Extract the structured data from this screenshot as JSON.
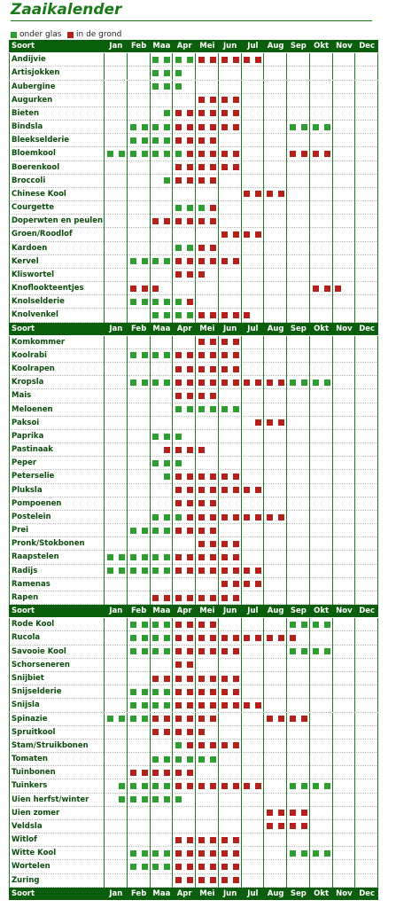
{
  "title": "Zaaikalender",
  "legend": {
    "glass": "onder glas",
    "ground": "in de grond"
  },
  "header": [
    "Soort",
    "Jan",
    "Feb",
    "Maa",
    "Apr",
    "Mei",
    "Jun",
    "Jul",
    "Aug",
    "Sep",
    "Okt",
    "Nov",
    "Dec"
  ],
  "sections": [
    {
      "rows": [
        {
          "name": "Andijvie",
          "slots": "....ggggrrrrrr.........."
        },
        {
          "name": "Artisjokken",
          "slots": "....ggg................."
        },
        {
          "name": "Aubergine",
          "slots": "....ggg................."
        },
        {
          "name": "Augurken",
          "slots": "........rrrr............"
        },
        {
          "name": "Bieten",
          "slots": ".....grrrrrr............"
        },
        {
          "name": "Bindsla",
          "slots": "..ggggrrrrrr....gggg...."
        },
        {
          "name": "Bleekselderie",
          "slots": "..ggggrrrr.............."
        },
        {
          "name": "Bloemkool",
          "slots": "gggggggrrrrr....rrrr...."
        },
        {
          "name": "Boerenkool",
          "slots": "......rrrrrr............"
        },
        {
          "name": "Broccoli",
          "slots": ".....grrrr.............."
        },
        {
          "name": "Chinese Kool",
          "slots": "............rrrr........"
        },
        {
          "name": "Courgette",
          "slots": "......gggr.............."
        },
        {
          "name": "Doperwten en peulen",
          "slots": "....rrrrrr.............."
        },
        {
          "name": "Groen/Roodlof",
          "slots": "..........rrrr.........."
        },
        {
          "name": "Kardoen",
          "slots": "......ggrr.............."
        },
        {
          "name": "Kervel",
          "slots": "..ggggrrrrrr............"
        },
        {
          "name": "Kliswortel",
          "slots": "......rrr..............."
        },
        {
          "name": "Knoflookteentjes",
          "slots": "..rrr.............rrr..."
        },
        {
          "name": "Knolselderie",
          "slots": "..gggggr................"
        },
        {
          "name": "Knolvenkel",
          "slots": "....ggggrrrrr..........."
        }
      ]
    },
    {
      "rows": [
        {
          "name": "Komkommer",
          "slots": "........rrrr............"
        },
        {
          "name": "Koolrabi",
          "slots": "..ggggrrrrrr............"
        },
        {
          "name": "Koolrapen",
          "slots": "......rrrrrr............"
        },
        {
          "name": "Kropsla",
          "slots": "..ggggrrrrrrrrrrgggg...."
        },
        {
          "name": "Mais",
          "slots": "......rrrr.............."
        },
        {
          "name": "Meloenen",
          "slots": "......gggggg............"
        },
        {
          "name": "Paksoi",
          "slots": ".............rrr........"
        },
        {
          "name": "Paprika",
          "slots": "....ggg................."
        },
        {
          "name": "Pastinaak",
          "slots": ".....rrrr..............."
        },
        {
          "name": "Peper",
          "slots": "....ggg................."
        },
        {
          "name": "Peterselie",
          "slots": ".....grrrrrr............"
        },
        {
          "name": "Pluksla",
          "slots": "......rrrrrrrr.........."
        },
        {
          "name": "Pompoenen",
          "slots": "......rrrr.............."
        },
        {
          "name": "Postelein",
          "slots": "....gggrrrrrrrrr........"
        },
        {
          "name": "Prei",
          "slots": "..ggggrrrr.............."
        },
        {
          "name": "Pronk/Stokbonen",
          "slots": "........rrrr............"
        },
        {
          "name": "Raapstelen",
          "slots": "ggggggrrrrrr............"
        },
        {
          "name": "Radijs",
          "slots": "ggggggrrrrrrrr.........."
        },
        {
          "name": "Ramenas",
          "slots": "..........rrrr.........."
        },
        {
          "name": "Rapen",
          "slots": "....rrrrrrrr............"
        }
      ]
    },
    {
      "rows": [
        {
          "name": "Rode Kool",
          "slots": "..ggggrrrr......gggg...."
        },
        {
          "name": "Rucola",
          "slots": "..ggggrrrrrrrrrrr......."
        },
        {
          "name": "Savooie Kool",
          "slots": "..ggggrrrrrr....gggg...."
        },
        {
          "name": "Schorseneren",
          "slots": "......rr................"
        },
        {
          "name": "Snijbiet",
          "slots": "....rrrrrrrr............"
        },
        {
          "name": "Snijselderie",
          "slots": "..ggggrrrrrr............"
        },
        {
          "name": "Snijsla",
          "slots": "..ggggrrrrrrrr.........."
        },
        {
          "name": "Spinazie",
          "slots": "ggggrrrrrr....rrrr......"
        },
        {
          "name": "Spruitkool",
          "slots": "....rrrrr..............."
        },
        {
          "name": "Stam/Struikbonen",
          "slots": "......grrrrr............"
        },
        {
          "name": "Tomaten",
          "slots": "....gggggg.............."
        },
        {
          "name": "Tuinbonen",
          "slots": "..rrrrrr................"
        },
        {
          "name": "Tuinkers",
          "slots": ".gggggrrrrrrrr..gggg...."
        },
        {
          "name": "Uien herfst/winter",
          "slots": ".gggggg................."
        },
        {
          "name": "Uien zomer",
          "slots": "..............rrrr......"
        },
        {
          "name": "Veldsla",
          "slots": "..............rrrr......"
        },
        {
          "name": "Witlof",
          "slots": "......rrrrrr............"
        },
        {
          "name": "Witte Kool",
          "slots": "..ggggrrrrrr....gggg...."
        },
        {
          "name": "Wortelen",
          "slots": "..ggggrrrrrr............"
        },
        {
          "name": "Zuring",
          "slots": "......rrrrrr............"
        }
      ]
    }
  ]
}
